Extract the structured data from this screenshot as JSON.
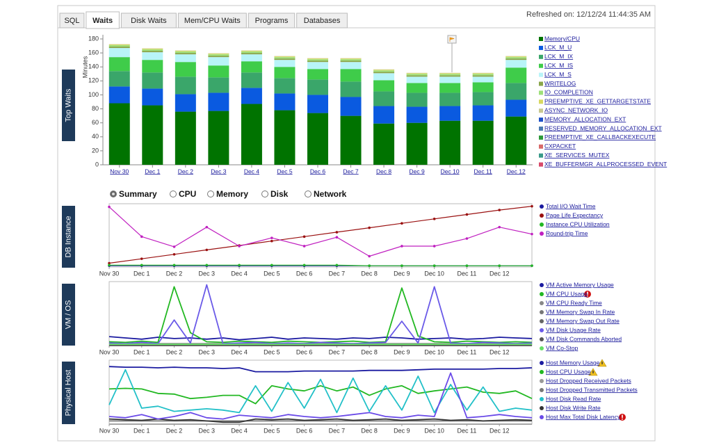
{
  "tabs": [
    "SQL",
    "Waits",
    "Disk Waits",
    "Mem/CPU Waits",
    "Programs",
    "Databases"
  ],
  "active_tab": "Waits",
  "refreshed": "Refreshed on: 12/12/24 11:44:35 AM",
  "radio_options": [
    "Summary",
    "CPU",
    "Memory",
    "Disk",
    "Network"
  ],
  "radio_selected": "Summary",
  "chart_data": [
    {
      "type": "bar",
      "stacked": true,
      "title": "Top Waits",
      "y_label": "Minutes",
      "categories": [
        "Nov 30",
        "Dec 1",
        "Dec 2",
        "Dec 3",
        "Dec 4",
        "Dec 5",
        "Dec 6",
        "Dec 7",
        "Dec 8",
        "Dec 9",
        "Dec 10",
        "Dec 11",
        "Dec 12"
      ],
      "ylim": [
        0,
        180
      ],
      "yticks": [
        0,
        20,
        40,
        60,
        80,
        100,
        120,
        140,
        160,
        180
      ],
      "series": [
        {
          "name": "Memory/CPU",
          "color": "#007300",
          "values": [
            88,
            85,
            76,
            77,
            87,
            78,
            74,
            70,
            59,
            60,
            63,
            63,
            69
          ]
        },
        {
          "name": "LCK_M_U",
          "color": "#0a5ae0",
          "values": [
            24,
            24,
            25,
            26,
            23,
            24,
            26,
            27,
            25,
            23,
            21,
            22,
            24
          ]
        },
        {
          "name": "LCK_M_IX",
          "color": "#3aa66a",
          "values": [
            22,
            23,
            25,
            22,
            22,
            22,
            22,
            22,
            21,
            20,
            19,
            19,
            24
          ]
        },
        {
          "name": "LCK_M_IS",
          "color": "#3fcc4a",
          "values": [
            20,
            18,
            21,
            17,
            16,
            16,
            15,
            18,
            16,
            14,
            14,
            14,
            22
          ]
        },
        {
          "name": "LCK_M_S",
          "color": "#b8f4f8",
          "values": [
            13,
            11,
            11,
            12,
            10,
            10,
            10,
            10,
            10,
            9,
            9,
            8,
            11
          ]
        },
        {
          "name": "WRITELOG",
          "color": "#8aa64a",
          "values": [
            2,
            2,
            2,
            2,
            2,
            2,
            2,
            2,
            2,
            2,
            2,
            2,
            2
          ]
        },
        {
          "name": "IO_COMPLETION",
          "color": "#9ee07a",
          "values": [
            2,
            2,
            2,
            2,
            2,
            2,
            2,
            2,
            2,
            2,
            2,
            2,
            2
          ]
        },
        {
          "name": "PREEMPTIVE_XE_GETTARGETSTATE",
          "color": "#d8d860",
          "values": [
            1,
            1,
            1,
            1,
            1,
            1,
            1,
            1,
            1,
            1,
            1,
            1,
            1
          ]
        },
        {
          "name": "ASYNC_NETWORK_IO",
          "color": "#c8c890",
          "values": [
            0.5,
            0.5,
            0.5,
            0.5,
            0.5,
            0.5,
            0.5,
            0.5,
            0.5,
            0.5,
            0.5,
            0.5,
            0.5
          ]
        },
        {
          "name": "MEMORY_ALLOCATION_EXT",
          "color": "#1e50c8",
          "values": [
            0,
            0,
            0,
            0,
            0,
            0,
            0,
            0,
            0,
            0,
            0,
            0,
            0
          ]
        },
        {
          "name": "RESERVED_MEMORY_ALLOCATION_EXT",
          "color": "#4a7ab0",
          "values": [
            0,
            0,
            0,
            0,
            0,
            0,
            0,
            0,
            0,
            0,
            0,
            0,
            0
          ]
        },
        {
          "name": "PREEMPTIVE_XE_CALLBACKEXECUTE",
          "color": "#2e9a3a",
          "values": [
            0,
            0,
            0,
            0,
            0,
            0,
            0,
            0,
            0,
            0,
            0,
            0,
            0
          ]
        },
        {
          "name": "CXPACKET",
          "color": "#d86a6a",
          "values": [
            0,
            0,
            0,
            0,
            0,
            0,
            0,
            0,
            0,
            0,
            0,
            0,
            0
          ]
        },
        {
          "name": "XE_SERVICES_MUTEX",
          "color": "#3a9a8a",
          "values": [
            0,
            0,
            0,
            0,
            0,
            0,
            0,
            0,
            0,
            0,
            0,
            0,
            0
          ]
        },
        {
          "name": "XE_BUFFERMGR_ALLPROCESSED_EVENT",
          "color": "#d84a6a",
          "values": [
            0,
            0,
            0,
            0,
            0,
            0,
            0,
            0,
            0,
            0,
            0,
            0,
            0
          ]
        }
      ]
    },
    {
      "type": "line",
      "title": "DB Instance",
      "markers": true,
      "x": [
        0,
        1,
        2,
        3,
        4,
        5,
        6,
        7,
        8,
        9,
        10,
        11,
        12,
        13
      ],
      "xlim": [
        0,
        13
      ],
      "ylim": [
        0,
        100
      ],
      "xticks": [
        {
          "value": 0,
          "label": "Nov 30"
        },
        {
          "value": 1,
          "label": "Dec 1"
        },
        {
          "value": 2,
          "label": "Dec 2"
        },
        {
          "value": 3,
          "label": "Dec 3"
        },
        {
          "value": 4,
          "label": "Dec 4"
        },
        {
          "value": 5,
          "label": "Dec 5"
        },
        {
          "value": 6,
          "label": "Dec 6"
        },
        {
          "value": 7,
          "label": "Dec 7"
        },
        {
          "value": 8,
          "label": "Dec 8"
        },
        {
          "value": 9,
          "label": "Dec 9"
        },
        {
          "value": 10,
          "label": "Dec 10"
        },
        {
          "value": 11,
          "label": "Dec 11"
        },
        {
          "value": 12,
          "label": "Dec 12"
        }
      ],
      "series": [
        {
          "name": "Total I/O Wait Time",
          "color": "#1a1aa0",
          "values": [
            2,
            2,
            2,
            2,
            2,
            2,
            2,
            2,
            2,
            2,
            2,
            2,
            2,
            2
          ]
        },
        {
          "name": "Page Life Expectancy",
          "color": "#9a1010",
          "values": [
            6,
            13,
            20,
            27,
            34,
            41,
            48,
            55,
            62,
            69,
            76,
            83,
            90,
            96
          ]
        },
        {
          "name": "Instance CPU Utilization",
          "color": "#22b822",
          "values": [
            3,
            3,
            3,
            3,
            3,
            3,
            3,
            3,
            2,
            2,
            2,
            2,
            2,
            2
          ]
        },
        {
          "name": "Round-trip Time",
          "color": "#c020c0",
          "values": [
            95,
            48,
            32,
            63,
            33,
            46,
            33,
            47,
            17,
            33,
            33,
            45,
            63,
            52
          ]
        }
      ]
    },
    {
      "type": "line",
      "title": "VM / OS",
      "markers": false,
      "x": [
        0,
        0.5,
        1,
        1.5,
        2,
        2.5,
        3,
        3.5,
        4,
        4.5,
        5,
        5.5,
        6,
        6.5,
        7,
        7.5,
        8,
        8.5,
        9,
        9.5,
        10,
        10.5,
        11,
        11.5,
        12,
        12.5,
        13
      ],
      "xlim": [
        0,
        13
      ],
      "ylim": [
        0,
        100
      ],
      "xticks": [
        {
          "value": 0,
          "label": "Nov 30"
        },
        {
          "value": 1,
          "label": "Dec 1"
        },
        {
          "value": 2,
          "label": "Dec 2"
        },
        {
          "value": 3,
          "label": "Dec 3"
        },
        {
          "value": 4,
          "label": "Dec 4"
        },
        {
          "value": 5,
          "label": "Dec 5"
        },
        {
          "value": 6,
          "label": "Dec 6"
        },
        {
          "value": 7,
          "label": "Dec 7"
        },
        {
          "value": 8,
          "label": "Dec 8"
        },
        {
          "value": 9,
          "label": "Dec 9"
        },
        {
          "value": 10,
          "label": "Dec 10"
        },
        {
          "value": 11,
          "label": "Dec 11"
        },
        {
          "value": 12,
          "label": "Dec 12"
        }
      ],
      "series": [
        {
          "name": "VM Active Memory Usage",
          "color": "#1a1aa0",
          "values": [
            14,
            12,
            10,
            13,
            11,
            12,
            10,
            12,
            9,
            11,
            13,
            10,
            12,
            11,
            10,
            12,
            11,
            13,
            12,
            10,
            11,
            12,
            10,
            11,
            13,
            12,
            11
          ]
        },
        {
          "name": "VM CPU Usage",
          "color": "#22b822",
          "values": [
            6,
            5,
            7,
            5,
            92,
            20,
            6,
            5,
            7,
            6,
            5,
            7,
            6,
            5,
            6,
            7,
            5,
            6,
            90,
            15,
            6,
            5,
            7,
            6,
            5,
            6,
            5
          ]
        },
        {
          "name": "VM CPU Ready Time",
          "color": "#888888",
          "values": [
            3,
            3,
            3,
            3,
            3,
            3,
            3,
            3,
            3,
            3,
            3,
            3,
            3,
            3,
            3,
            3,
            3,
            3,
            3,
            3,
            3,
            3,
            3,
            3,
            3,
            3,
            3
          ]
        },
        {
          "name": "VM Memory Swap In Rate",
          "color": "#777777",
          "values": [
            1,
            1,
            1,
            1,
            1,
            1,
            1,
            1,
            1,
            1,
            1,
            1,
            1,
            1,
            1,
            1,
            1,
            1,
            1,
            1,
            1,
            1,
            1,
            1,
            1,
            1,
            1
          ]
        },
        {
          "name": "VM Memory Swap Out Rate",
          "color": "#666666",
          "values": [
            1,
            1,
            1,
            1,
            1,
            1,
            1,
            1,
            1,
            1,
            1,
            1,
            1,
            1,
            1,
            1,
            1,
            1,
            1,
            1,
            1,
            1,
            1,
            1,
            1,
            1,
            1
          ]
        },
        {
          "name": "VM Disk Usage Rate",
          "color": "#6a5ae8",
          "values": [
            4,
            3,
            5,
            3,
            40,
            4,
            95,
            3,
            4,
            5,
            3,
            4,
            3,
            5,
            4,
            3,
            4,
            5,
            38,
            4,
            92,
            4,
            3,
            5,
            4,
            3,
            4
          ]
        },
        {
          "name": "VM Disk Commands Aborted",
          "color": "#555555",
          "values": [
            0,
            0,
            0,
            0,
            0,
            0,
            0,
            0,
            0,
            0,
            0,
            0,
            0,
            0,
            0,
            0,
            0,
            0,
            0,
            0,
            0,
            0,
            0,
            0,
            0,
            0,
            0
          ]
        },
        {
          "name": "VM Co-Stop",
          "color": "#66e066",
          "values": [
            2,
            2,
            2,
            2,
            2,
            2,
            2,
            2,
            2,
            2,
            2,
            2,
            2,
            2,
            2,
            2,
            2,
            2,
            2,
            2,
            2,
            2,
            2,
            2,
            2,
            2,
            2
          ]
        }
      ]
    },
    {
      "type": "line",
      "title": "Physical Host",
      "markers": false,
      "x": [
        0,
        0.5,
        1,
        1.5,
        2,
        2.5,
        3,
        3.5,
        4,
        4.5,
        5,
        5.5,
        6,
        6.5,
        7,
        7.5,
        8,
        8.5,
        9,
        9.5,
        10,
        10.5,
        11,
        11.5,
        12,
        12.5,
        13
      ],
      "xlim": [
        0,
        13
      ],
      "ylim": [
        0,
        100
      ],
      "xticks": [
        {
          "value": 0,
          "label": "Nov 30"
        },
        {
          "value": 1,
          "label": "Dec 1"
        },
        {
          "value": 2,
          "label": "Dec 2"
        },
        {
          "value": 3,
          "label": "Dec 3"
        },
        {
          "value": 4,
          "label": "Dec 4"
        },
        {
          "value": 5,
          "label": "Dec 5"
        },
        {
          "value": 6,
          "label": "Dec 6"
        },
        {
          "value": 7,
          "label": "Dec 7"
        },
        {
          "value": 8,
          "label": "Dec 8"
        },
        {
          "value": 9,
          "label": "Dec 9"
        },
        {
          "value": 10,
          "label": "Dec 10"
        },
        {
          "value": 11,
          "label": "Dec 11"
        },
        {
          "value": 12,
          "label": "Dec 12"
        }
      ],
      "series": [
        {
          "name": "Host Memory Usage",
          "color": "#1a1aa0",
          "values": [
            90,
            89,
            89,
            88,
            89,
            88,
            88,
            87,
            88,
            82,
            82,
            82,
            83,
            83,
            83,
            83,
            84,
            84,
            84,
            85,
            86,
            86,
            86,
            86,
            87,
            87,
            88
          ]
        },
        {
          "name": "Host CPU Usage",
          "color": "#22b822",
          "values": [
            55,
            56,
            55,
            48,
            47,
            40,
            42,
            45,
            45,
            32,
            60,
            55,
            52,
            60,
            52,
            58,
            45,
            55,
            60,
            48,
            52,
            55,
            58,
            50,
            48,
            52,
            40
          ]
        },
        {
          "name": "Host Dropped Received Packets",
          "color": "#999999",
          "values": [
            0,
            0,
            0,
            0,
            0,
            0,
            0,
            0,
            0,
            0,
            0,
            0,
            0,
            0,
            0,
            0,
            0,
            0,
            0,
            0,
            0,
            0,
            0,
            0,
            0,
            0,
            0
          ]
        },
        {
          "name": "Host Dropped Transmitted Packets",
          "color": "#777777",
          "values": [
            5,
            5,
            5,
            5,
            5,
            5,
            5,
            5,
            5,
            5,
            5,
            5,
            5,
            5,
            5,
            5,
            5,
            5,
            5,
            5,
            5,
            5,
            5,
            5,
            5,
            5,
            5
          ]
        },
        {
          "name": "Host Disk Read Rate",
          "color": "#22c0c8",
          "values": [
            30,
            85,
            25,
            28,
            20,
            22,
            24,
            22,
            18,
            60,
            20,
            65,
            25,
            70,
            18,
            72,
            20,
            60,
            22,
            75,
            18,
            62,
            22,
            58,
            20,
            25,
            22
          ]
        },
        {
          "name": "Host Disk Write Rate",
          "color": "#333333",
          "values": [
            8,
            7,
            6,
            8,
            6,
            7,
            5,
            3,
            3,
            8,
            7,
            8,
            6,
            7,
            8,
            6,
            7,
            8,
            6,
            7,
            8,
            6,
            7,
            5,
            6,
            7,
            6
          ]
        },
        {
          "name": "Host Max Total Disk Latency",
          "color": "#6a4ae8",
          "values": [
            12,
            10,
            15,
            8,
            12,
            18,
            10,
            8,
            14,
            12,
            10,
            15,
            12,
            10,
            12,
            15,
            18,
            12,
            10,
            14,
            12,
            80,
            10,
            12,
            15,
            12,
            10
          ]
        }
      ]
    }
  ]
}
